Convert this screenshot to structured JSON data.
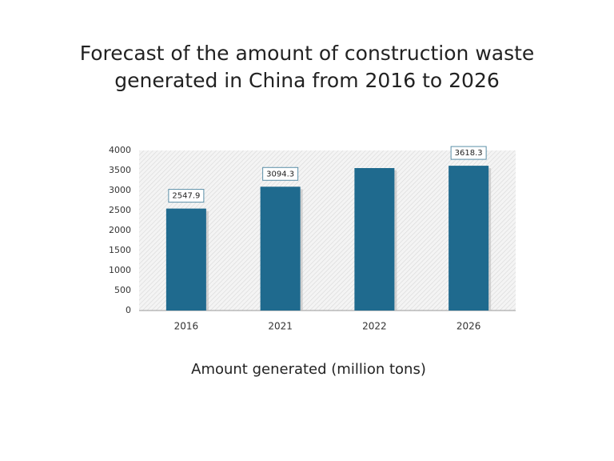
{
  "chart_data": {
    "type": "bar",
    "title": "Forecast of the amount of construction waste generated in China from 2016 to 2026",
    "x_label": "Amount generated (million tons)",
    "categories": [
      "2016",
      "2021",
      "2022",
      "2026"
    ],
    "values": [
      2547.9,
      3094.3,
      3560,
      3618.3
    ],
    "value_labels": [
      "2547.9",
      "3094.3",
      null,
      "3618.3"
    ],
    "color": "#1f6a8e",
    "ylim": [
      0,
      4000
    ],
    "yticks": [
      0,
      500,
      1000,
      1500,
      2000,
      2500,
      3000,
      3500,
      4000
    ],
    "grid": false
  }
}
